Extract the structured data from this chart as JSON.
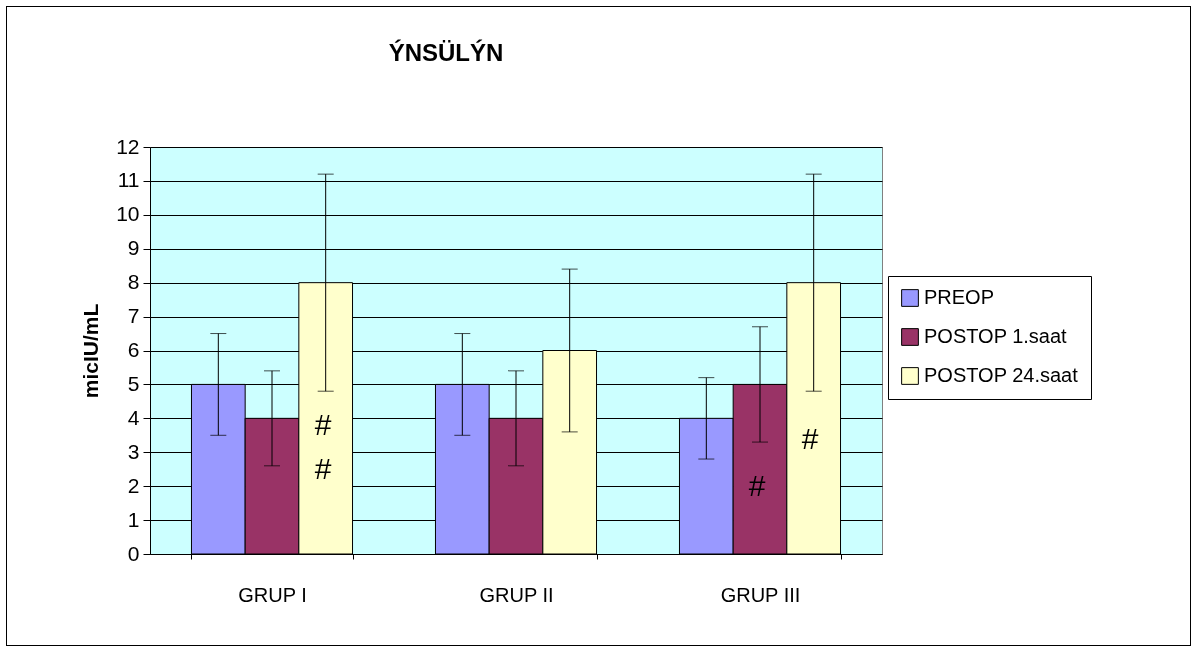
{
  "chart_data": {
    "type": "bar",
    "title": "ÝNSÜLÝN",
    "ylabel": "micIU/mL",
    "categories": [
      "GRUP I",
      "GRUP II",
      "GRUP III"
    ],
    "series": [
      {
        "name": "PREOP",
        "color": "#9999ff",
        "values": [
          5,
          5,
          4
        ],
        "errors": [
          1.5,
          1.5,
          1.2
        ]
      },
      {
        "name": "POSTOP 1.saat",
        "color": "#993366",
        "values": [
          4,
          4,
          5
        ],
        "errors": [
          1.4,
          1.4,
          1.7
        ]
      },
      {
        "name": "POSTOP 24.saat",
        "color": "#ffffcc",
        "values": [
          8,
          6,
          8
        ],
        "errors": [
          3.2,
          2.4,
          3.2
        ]
      }
    ],
    "ylim": [
      0,
      12
    ],
    "yticks": [
      0,
      1,
      2,
      3,
      4,
      5,
      6,
      7,
      8,
      9,
      10,
      11,
      12
    ],
    "grid": "y",
    "legend": "right",
    "annotations": [
      "#",
      "#",
      "#",
      "#"
    ]
  }
}
